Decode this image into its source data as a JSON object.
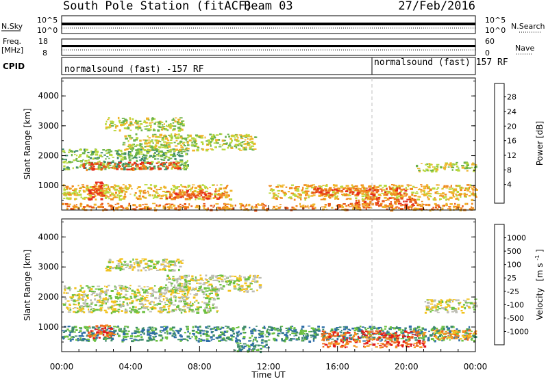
{
  "header": {
    "station": "South Pole Station (fitACF)",
    "beam": "Beam 03",
    "date": "27/Feb/2016"
  },
  "noise_panel": {
    "left_label": "N.Sky",
    "right_label": "N.Search",
    "tick_top_left": "10^5",
    "tick_bottom_left": "10^0",
    "tick_top_right": "10^5",
    "tick_bottom_right": "10^0"
  },
  "freq_panel": {
    "left_label_1": "Freq.",
    "left_label_2": "[MHz]",
    "right_label": "Nave",
    "tick_top_left": "18",
    "tick_bottom_left": "8",
    "tick_top_right": "60",
    "tick_bottom_right": "0"
  },
  "cpid_panel": {
    "label": "CPID",
    "segment_1": "normalsound (fast) -157 RF",
    "segment_2": "normalsound (fast) 157 RF",
    "segment_split_hour": 18
  },
  "chart_data": [
    {
      "type": "heatmap",
      "title": "",
      "ylabel": "Slant Range [km]",
      "yticks": [
        "1000",
        "2000",
        "3000",
        "4000"
      ],
      "ylim": [
        180,
        4600
      ],
      "xlim_hours": [
        0,
        24
      ],
      "colorbar": {
        "label": "Power [dB]",
        "ticks": [
          "4",
          "8",
          "12",
          "16",
          "20",
          "24",
          "28"
        ],
        "colors": [
          "#1f1fe6",
          "#2a54b0",
          "#3c8a6a",
          "#6cb34a",
          "#b8d83c",
          "#f0b42a",
          "#f08a1e",
          "#e8571a",
          "#e52a1a"
        ]
      },
      "bands": [
        {
          "x0": 0.0,
          "x1": 7.3,
          "y0": 1550,
          "y1": 2250,
          "level": 3
        },
        {
          "x0": 1.2,
          "x1": 6.8,
          "y0": 1550,
          "y1": 1800,
          "level": 7
        },
        {
          "x0": 3.5,
          "x1": 11.2,
          "y0": 2200,
          "y1": 2750,
          "level": 4
        },
        {
          "x0": 2.5,
          "x1": 7.0,
          "y0": 2850,
          "y1": 3300,
          "level": 4
        },
        {
          "x0": 0.0,
          "x1": 9.8,
          "y0": 560,
          "y1": 1050,
          "level": 5
        },
        {
          "x0": 1.5,
          "x1": 2.4,
          "y0": 560,
          "y1": 1150,
          "level": 8
        },
        {
          "x0": 6.0,
          "x1": 9.5,
          "y0": 580,
          "y1": 850,
          "level": 7
        },
        {
          "x0": 12.0,
          "x1": 24.0,
          "y0": 550,
          "y1": 1050,
          "level": 5
        },
        {
          "x0": 14.5,
          "x1": 20.0,
          "y0": 700,
          "y1": 950,
          "level": 7
        },
        {
          "x0": 17.0,
          "x1": 21.0,
          "y0": 350,
          "y1": 620,
          "level": 7
        },
        {
          "x0": 20.5,
          "x1": 24.0,
          "y0": 1500,
          "y1": 1800,
          "level": 4
        },
        {
          "x0": 0.0,
          "x1": 24.0,
          "y0": 200,
          "y1": 420,
          "level": 6
        }
      ]
    },
    {
      "type": "heatmap",
      "title": "",
      "ylabel": "Slant Range [km]",
      "xlabel": "Time UT",
      "xticks": [
        "00:00",
        "04:00",
        "08:00",
        "12:00",
        "16:00",
        "20:00",
        "00:00"
      ],
      "yticks": [
        "1000",
        "2000",
        "3000",
        "4000"
      ],
      "ylim": [
        180,
        4600
      ],
      "xlim_hours": [
        0,
        24
      ],
      "colorbar": {
        "label_main": "Velocity",
        "label_unit": "[m s",
        "label_exp": "-1",
        "label_close": "]",
        "ticks": [
          "1000",
          "500",
          "100",
          "25",
          "-25",
          "-100",
          "-500",
          "-1000"
        ],
        "colors": [
          "#2a3fd0",
          "#2f6ea8",
          "#3c8a6a",
          "#6cc040",
          "#bdbdb4",
          "#f2c21e",
          "#f49420",
          "#ee6b1e",
          "#e21a1a"
        ]
      },
      "bands": [
        {
          "x0": 0.0,
          "x1": 9.0,
          "y0": 1500,
          "y1": 2400,
          "level": 4
        },
        {
          "x0": 6.0,
          "x1": 11.5,
          "y0": 2200,
          "y1": 2750,
          "level": 4
        },
        {
          "x0": 2.5,
          "x1": 7.0,
          "y0": 2900,
          "y1": 3300,
          "level": 4
        },
        {
          "x0": 0.0,
          "x1": 24.0,
          "y0": 550,
          "y1": 1050,
          "level": 2
        },
        {
          "x0": 1.5,
          "x1": 3.0,
          "y0": 650,
          "y1": 1100,
          "level": 7
        },
        {
          "x0": 15.0,
          "x1": 21.0,
          "y0": 350,
          "y1": 900,
          "level": 7
        },
        {
          "x0": 21.5,
          "x1": 24.0,
          "y0": 600,
          "y1": 950,
          "level": 6
        },
        {
          "x0": 21.0,
          "x1": 24.0,
          "y0": 1500,
          "y1": 1950,
          "level": 4
        },
        {
          "x0": 10.0,
          "x1": 12.0,
          "y0": 200,
          "y1": 500,
          "level": 2
        }
      ]
    }
  ]
}
